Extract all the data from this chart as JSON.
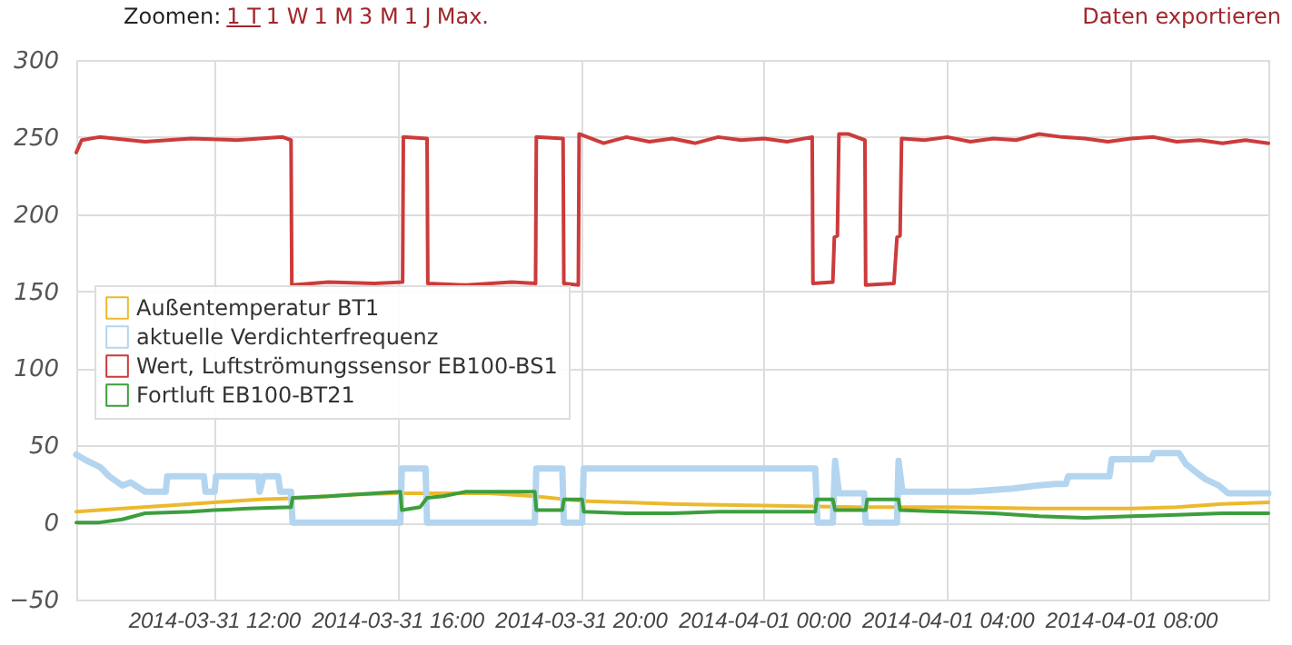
{
  "chart_data": {
    "type": "line",
    "ylim": [
      -50,
      300
    ],
    "yticks": [
      -50,
      0,
      50,
      100,
      150,
      200,
      250,
      300
    ],
    "xlim": [
      "2014-03-31T09:00",
      "2014-04-01T11:00"
    ],
    "xticks": [
      {
        "value": "2014-03-31T12:00",
        "label": "2014-03-31 12:00"
      },
      {
        "value": "2014-03-31T16:00",
        "label": "2014-03-31 16:00"
      },
      {
        "value": "2014-03-31T20:00",
        "label": "2014-03-31 20:00"
      },
      {
        "value": "2014-04-01T00:00",
        "label": "2014-04-01 00:00"
      },
      {
        "value": "2014-04-01T04:00",
        "label": "2014-04-01 04:00"
      },
      {
        "value": "2014-04-01T08:00",
        "label": "2014-04-01 08:00"
      }
    ],
    "grid": true,
    "legend": "left",
    "annotations": [
      "Zoomen:",
      "1 T",
      "1 W",
      "1 M",
      "3 M",
      "1 J",
      "Max.",
      "Daten exportieren"
    ],
    "series": [
      {
        "name": "Außentemperatur BT1",
        "color": "#ecb92e",
        "x": [
          "2014-03-31T09:00",
          "2014-03-31T10:00",
          "2014-03-31T11:00",
          "2014-03-31T12:00",
          "2014-03-31T13:00",
          "2014-03-31T14:00",
          "2014-03-31T15:00",
          "2014-03-31T16:00",
          "2014-03-31T17:00",
          "2014-03-31T18:00",
          "2014-03-31T19:00",
          "2014-03-31T20:00",
          "2014-03-31T21:00",
          "2014-03-31T22:00",
          "2014-04-01T00:00",
          "2014-04-01T02:00",
          "2014-04-01T04:00",
          "2014-04-01T06:00",
          "2014-04-01T08:00",
          "2014-04-01T09:00",
          "2014-04-01T10:00",
          "2014-04-01T11:00"
        ],
        "values": [
          7,
          9,
          11,
          13,
          15,
          16,
          18,
          19,
          19,
          19,
          17,
          14,
          13,
          12,
          11,
          10,
          10,
          9,
          9,
          10,
          12,
          13
        ]
      },
      {
        "name": "aktuelle Verdichterfrequenz",
        "color": "#b3d5f0",
        "x": [
          "2014-03-31T09:00",
          "2014-03-31T09:14",
          "2014-03-31T09:31",
          "2014-03-31T09:43",
          "2014-03-31T10:00",
          "2014-03-31T10:11",
          "2014-03-31T10:30",
          "2014-03-31T10:57",
          "2014-03-31T10:59",
          "2014-03-31T11:47",
          "2014-03-31T11:49",
          "2014-03-31T12:01",
          "2014-03-31T12:03",
          "2014-03-31T12:58",
          "2014-03-31T13:00",
          "2014-03-31T13:05",
          "2014-03-31T13:24",
          "2014-03-31T13:27",
          "2014-03-31T13:41",
          "2014-03-31T13:43",
          "2014-03-31T16:04",
          "2014-03-31T16:06",
          "2014-03-31T16:37",
          "2014-03-31T16:39",
          "2014-03-31T19:00",
          "2014-03-31T19:02",
          "2014-03-31T19:36",
          "2014-03-31T19:38",
          "2014-03-31T20:02",
          "2014-03-31T20:04",
          "2014-04-01T01:07",
          "2014-04-01T01:10",
          "2014-04-01T01:30",
          "2014-04-01T01:33",
          "2014-04-01T01:38",
          "2014-04-01T02:11",
          "2014-04-01T02:13",
          "2014-04-01T02:54",
          "2014-04-01T02:56",
          "2014-04-01T03:01",
          "2014-04-01T04:29",
          "2014-04-01T04:58",
          "2014-04-01T05:26",
          "2014-04-01T05:57",
          "2014-04-01T06:21",
          "2014-04-01T06:35",
          "2014-04-01T06:38",
          "2014-04-01T07:32",
          "2014-04-01T07:35",
          "2014-04-01T08:27",
          "2014-04-01T08:30",
          "2014-04-01T09:03",
          "2014-04-01T09:12",
          "2014-04-01T09:27",
          "2014-04-01T09:38",
          "2014-04-01T09:55",
          "2014-04-01T10:07",
          "2014-04-01T11:00"
        ],
        "values": [
          44,
          40,
          36,
          30,
          24,
          26,
          20,
          20,
          30,
          30,
          20,
          20,
          30,
          30,
          20,
          30,
          30,
          20,
          20,
          0,
          0,
          35,
          35,
          0,
          0,
          35,
          35,
          0,
          0,
          35,
          35,
          0,
          0,
          40,
          19,
          19,
          0,
          0,
          40,
          20,
          20,
          21,
          22,
          24,
          25,
          25,
          30,
          30,
          41,
          41,
          45,
          45,
          38,
          32,
          28,
          24,
          19,
          19
        ]
      },
      {
        "name": "Wert, Luftströmungssensor EB100-BS1",
        "color": "#cc3b3b",
        "x": [
          "2014-03-31T09:00",
          "2014-03-31T09:07",
          "2014-03-31T09:30",
          "2014-03-31T10:30",
          "2014-03-31T11:30",
          "2014-03-31T12:30",
          "2014-03-31T13:30",
          "2014-03-31T13:41",
          "2014-03-31T13:42",
          "2014-03-31T14:30",
          "2014-03-31T15:30",
          "2014-03-31T16:07",
          "2014-03-31T16:08",
          "2014-03-31T16:39",
          "2014-03-31T16:40",
          "2014-03-31T17:30",
          "2014-03-31T18:30",
          "2014-03-31T19:01",
          "2014-03-31T19:02",
          "2014-03-31T19:37",
          "2014-03-31T19:38",
          "2014-03-31T19:57",
          "2014-03-31T19:58",
          "2014-03-31T20:30",
          "2014-03-31T21:00",
          "2014-03-31T21:30",
          "2014-03-31T22:00",
          "2014-03-31T22:30",
          "2014-03-31T23:00",
          "2014-03-31T23:30",
          "2014-04-01T00:00",
          "2014-04-01T00:30",
          "2014-04-01T01:03",
          "2014-04-01T01:04",
          "2014-04-01T01:30",
          "2014-04-01T01:32",
          "2014-04-01T01:36",
          "2014-04-01T01:38",
          "2014-04-01T01:50",
          "2014-04-01T02:12",
          "2014-04-01T02:13",
          "2014-04-01T02:50",
          "2014-04-01T02:54",
          "2014-04-01T02:58",
          "2014-04-01T03:00",
          "2014-04-01T03:30",
          "2014-04-01T04:00",
          "2014-04-01T04:30",
          "2014-04-01T05:00",
          "2014-04-01T05:30",
          "2014-04-01T06:00",
          "2014-04-01T06:30",
          "2014-04-01T07:00",
          "2014-04-01T07:30",
          "2014-04-01T08:00",
          "2014-04-01T08:30",
          "2014-04-01T09:00",
          "2014-04-01T09:30",
          "2014-04-01T10:00",
          "2014-04-01T10:30",
          "2014-04-01T11:00"
        ],
        "values": [
          240,
          248,
          250,
          247,
          249,
          248,
          250,
          248,
          154,
          156,
          155,
          156,
          250,
          249,
          155,
          154,
          156,
          155,
          250,
          249,
          155,
          154,
          252,
          246,
          250,
          247,
          249,
          246,
          250,
          248,
          249,
          247,
          250,
          155,
          156,
          185,
          186,
          252,
          252,
          248,
          154,
          155,
          185,
          186,
          249,
          248,
          250,
          247,
          249,
          248,
          252,
          250,
          249,
          247,
          249,
          250,
          247,
          248,
          246,
          248,
          246
        ]
      },
      {
        "name": "Fortluft EB100-BT21",
        "color": "#3d9e3d",
        "x": [
          "2014-03-31T09:00",
          "2014-03-31T09:30",
          "2014-03-31T10:00",
          "2014-03-31T10:30",
          "2014-03-31T11:30",
          "2014-03-31T12:00",
          "2014-03-31T12:45",
          "2014-03-31T13:41",
          "2014-03-31T13:43",
          "2014-03-31T14:30",
          "2014-03-31T15:30",
          "2014-03-31T16:04",
          "2014-03-31T16:06",
          "2014-03-31T16:30",
          "2014-03-31T16:39",
          "2014-03-31T17:00",
          "2014-03-31T17:30",
          "2014-03-31T19:00",
          "2014-03-31T19:02",
          "2014-03-31T19:36",
          "2014-03-31T19:38",
          "2014-03-31T20:02",
          "2014-03-31T20:04",
          "2014-03-31T21:00",
          "2014-03-31T22:00",
          "2014-03-31T23:00",
          "2014-04-01T00:00",
          "2014-04-01T01:07",
          "2014-04-01T01:09",
          "2014-04-01T01:30",
          "2014-04-01T01:33",
          "2014-04-01T02:13",
          "2014-04-01T02:15",
          "2014-04-01T02:56",
          "2014-04-01T02:58",
          "2014-04-01T04:00",
          "2014-04-01T05:00",
          "2014-04-01T06:00",
          "2014-04-01T07:00",
          "2014-04-01T08:00",
          "2014-04-01T09:00",
          "2014-04-01T10:00",
          "2014-04-01T11:00"
        ],
        "values": [
          0,
          0,
          2,
          6,
          7,
          8,
          9,
          10,
          16,
          17,
          19,
          20,
          8,
          10,
          16,
          17,
          20,
          20,
          8,
          8,
          15,
          15,
          7,
          6,
          6,
          7,
          7,
          7,
          15,
          15,
          8,
          8,
          15,
          15,
          8,
          7,
          6,
          4,
          3,
          4,
          5,
          6,
          6
        ]
      }
    ]
  }
}
